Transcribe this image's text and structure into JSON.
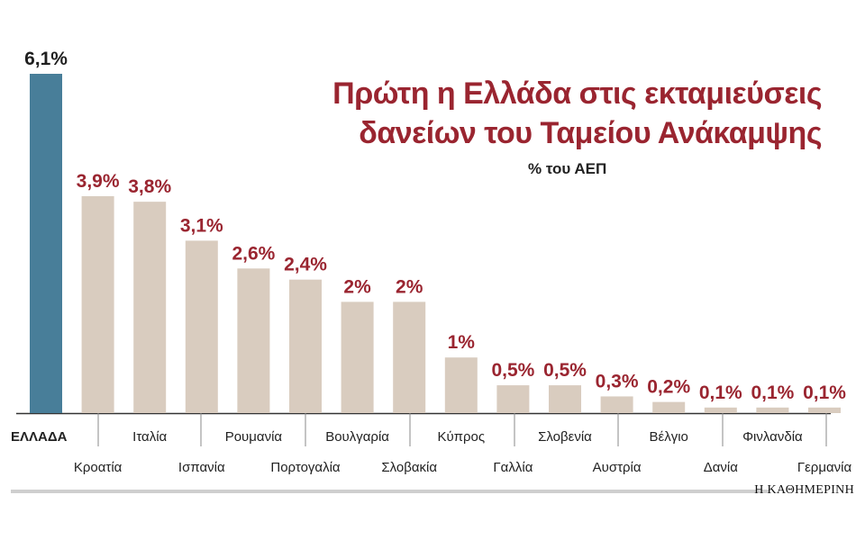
{
  "chart_data": {
    "type": "bar",
    "title_lines": [
      "Πρώτη η Ελλάδα στις εκταμιεύσεις",
      "δανείων του Ταμείου Ανάκαμψης"
    ],
    "subtitle": "% του ΑΕΠ",
    "categories": [
      "ΕΛΛΑΔΑ",
      "Κροατία",
      "Ιταλία",
      "Ισπανία",
      "Ρουμανία",
      "Πορτογαλία",
      "Βουλγαρία",
      "Σλοβακία",
      "Κύπρος",
      "Γαλλία",
      "Σλοβενία",
      "Αυστρία",
      "Βέλγιο",
      "Δανία",
      "Φινλανδία",
      "Γερμανία"
    ],
    "values": [
      6.1,
      3.9,
      3.8,
      3.1,
      2.6,
      2.4,
      2,
      2,
      1,
      0.5,
      0.5,
      0.3,
      0.2,
      0.1,
      0.1,
      0.1
    ],
    "value_labels": [
      "6,1%",
      "3,9%",
      "3,8%",
      "3,1%",
      "2,6%",
      "2,4%",
      "2%",
      "2%",
      "1%",
      "0,5%",
      "0,5%",
      "0,3%",
      "0,2%",
      "0,1%",
      "0,1%",
      "0,1%"
    ],
    "ylim": [
      0,
      6.1
    ],
    "xlabel": "",
    "ylabel": "",
    "grid": false,
    "legend": "none",
    "colors": {
      "highlight_bar": "#487e99",
      "bar": "#d9ccbf",
      "highlight_label": "#1f1f1f",
      "label": "#9a2530",
      "title": "#9a2530",
      "axis": "#333333"
    }
  },
  "source": "Η ΚΑΘΗΜΕΡΙΝΗ"
}
